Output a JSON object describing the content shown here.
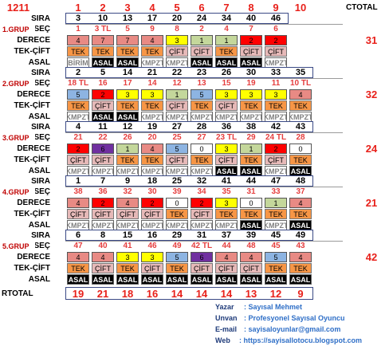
{
  "header": {
    "id": "1211",
    "columns": [
      "1",
      "2",
      "3",
      "4",
      "5",
      "6",
      "7",
      "8",
      "9",
      "10"
    ],
    "ctotal": "CTOTAL"
  },
  "row_labels": {
    "sira": "SIRA",
    "sec": "SEÇ",
    "derece": "DERECE",
    "tekcift": "TEK-ÇİFT",
    "asal": "ASAL"
  },
  "colors": {
    "red": "#ff0000",
    "pink": "#e88a84",
    "yellow": "#ffff00",
    "green": "#c4d79b",
    "blue": "#8db4e2",
    "purple": "#7030a0",
    "white": "#ffffff",
    "tek": "#f79646",
    "cift": "#e6b9b8",
    "asal": "#000000",
    "kmpzt": "#ffffff",
    "accent": "#e8201a",
    "labelblue": "#1f3b7a",
    "linkblue": "#2f6fc7"
  },
  "groups": [
    {
      "label": "1.GRUP",
      "sira": [
        "3",
        "10",
        "13",
        "17",
        "20",
        "24",
        "34",
        "40",
        "46"
      ],
      "sec": [
        "1",
        "3 TL",
        "5",
        "9",
        "8",
        "2",
        "4",
        "7",
        "6"
      ],
      "derece": [
        {
          "v": "4",
          "c": "pink"
        },
        {
          "v": "7",
          "c": "pink"
        },
        {
          "v": "7",
          "c": "pink"
        },
        {
          "v": "4",
          "c": "pink"
        },
        {
          "v": "3",
          "c": "yellow"
        },
        {
          "v": "1",
          "c": "green"
        },
        {
          "v": "1",
          "c": "green"
        },
        {
          "v": "2",
          "c": "red"
        },
        {
          "v": "2",
          "c": "red"
        }
      ],
      "tekcift": [
        "TEK",
        "TEK",
        "TEK",
        "TEK",
        "ÇİFT",
        "ÇİFT",
        "TEK",
        "ÇİFT",
        "ÇİFT"
      ],
      "asal": [
        "BİRİM",
        "ASAL",
        "ASAL",
        "KMPZT",
        "KMPZT",
        "ASAL",
        "ASAL",
        "ASAL",
        "KMPZT"
      ],
      "total": "31"
    },
    {
      "label": "2.GRUP",
      "sira": [
        "2",
        "5",
        "14",
        "21",
        "22",
        "23",
        "26",
        "30",
        "33",
        "35"
      ],
      "sec": [
        "18 TL",
        "16",
        "17",
        "14",
        "12",
        "13",
        "15",
        "19",
        "11",
        "10 TL"
      ],
      "derece": [
        {
          "v": "5",
          "c": "blue"
        },
        {
          "v": "2",
          "c": "red"
        },
        {
          "v": "3",
          "c": "yellow"
        },
        {
          "v": "3",
          "c": "yellow"
        },
        {
          "v": "1",
          "c": "green"
        },
        {
          "v": "5",
          "c": "blue"
        },
        {
          "v": "3",
          "c": "yellow"
        },
        {
          "v": "3",
          "c": "yellow"
        },
        {
          "v": "3",
          "c": "yellow"
        },
        {
          "v": "4",
          "c": "pink"
        }
      ],
      "tekcift": [
        "TEK",
        "ÇİFT",
        "TEK",
        "TEK",
        "ÇİFT",
        "TEK",
        "ÇİFT",
        "TEK",
        "TEK",
        "TEK"
      ],
      "asal": [
        "KMPZT",
        "ASAL",
        "ASAL",
        "KMPZT",
        "KMPZT",
        "KMPZT",
        "KMPZT",
        "KMPZT",
        "KMPZT",
        "KMPZT"
      ],
      "total": "32"
    },
    {
      "label": "3.GRUP",
      "sira": [
        "4",
        "11",
        "12",
        "19",
        "27",
        "28",
        "36",
        "38",
        "42",
        "43"
      ],
      "sec": [
        "21",
        "22",
        "26",
        "20",
        "25",
        "27",
        "23 TL",
        "29",
        "24 TL",
        "28"
      ],
      "derece": [
        {
          "v": "2",
          "c": "red"
        },
        {
          "v": "6",
          "c": "purple"
        },
        {
          "v": "1",
          "c": "green"
        },
        {
          "v": "4",
          "c": "pink"
        },
        {
          "v": "5",
          "c": "blue"
        },
        {
          "v": "0",
          "c": "white"
        },
        {
          "v": "3",
          "c": "yellow"
        },
        {
          "v": "1",
          "c": "green"
        },
        {
          "v": "2",
          "c": "red"
        },
        {
          "v": "0",
          "c": "white"
        }
      ],
      "tekcift": [
        "ÇİFT",
        "ÇİFT",
        "TEK",
        "TEK",
        "ÇİFT",
        "TEK",
        "ÇİFT",
        "TEK",
        "ÇİFT",
        "TEK"
      ],
      "asal": [
        "KMPZT",
        "KMPZT",
        "KMPZT",
        "KMPZT",
        "KMPZT",
        "KMPZT",
        "ASAL",
        "ASAL",
        "KMPZT",
        "ASAL"
      ],
      "total": "24"
    },
    {
      "label": "4.GRUP",
      "sira": [
        "1",
        "7",
        "9",
        "18",
        "25",
        "32",
        "41",
        "44",
        "47",
        "48"
      ],
      "sec": [
        "38",
        "36",
        "32",
        "30",
        "39",
        "34",
        "35",
        "31",
        "33",
        "37"
      ],
      "derece": [
        {
          "v": "4",
          "c": "pink"
        },
        {
          "v": "2",
          "c": "red"
        },
        {
          "v": "4",
          "c": "pink"
        },
        {
          "v": "2",
          "c": "red"
        },
        {
          "v": "0",
          "c": "white"
        },
        {
          "v": "2",
          "c": "red"
        },
        {
          "v": "3",
          "c": "yellow"
        },
        {
          "v": "0",
          "c": "white"
        },
        {
          "v": "1",
          "c": "green"
        },
        {
          "v": "4",
          "c": "pink"
        }
      ],
      "tekcift": [
        "ÇİFT",
        "ÇİFT",
        "ÇİFT",
        "ÇİFT",
        "TEK",
        "ÇİFT",
        "TEK",
        "TEK",
        "TEK",
        "TEK"
      ],
      "asal": [
        "KMPZT",
        "KMPZT",
        "KMPZT",
        "KMPZT",
        "KMPZT",
        "KMPZT",
        "KMPZT",
        "ASAL",
        "KMPZT",
        "ASAL"
      ],
      "total": "21"
    },
    {
      "label": "5.GRUP",
      "sira": [
        "6",
        "8",
        "15",
        "16",
        "29",
        "31",
        "37",
        "39",
        "45",
        "49"
      ],
      "sec": [
        "47",
        "40",
        "41",
        "46",
        "49",
        "42 TL",
        "44",
        "48",
        "45",
        "43"
      ],
      "derece": [
        {
          "v": "4",
          "c": "pink"
        },
        {
          "v": "4",
          "c": "pink"
        },
        {
          "v": "3",
          "c": "yellow"
        },
        {
          "v": "3",
          "c": "yellow"
        },
        {
          "v": "5",
          "c": "blue"
        },
        {
          "v": "6",
          "c": "purple"
        },
        {
          "v": "4",
          "c": "pink"
        },
        {
          "v": "4",
          "c": "pink"
        },
        {
          "v": "5",
          "c": "blue"
        },
        {
          "v": "4",
          "c": "pink"
        }
      ],
      "tekcift": [
        "TEK",
        "ÇİFT",
        "TEK",
        "ÇİFT",
        "TEK",
        "ÇİFT",
        "ÇİFT",
        "ÇİFT",
        "TEK",
        "TEK"
      ],
      "asal": [
        "ASAL",
        "ASAL",
        "ASAL",
        "ASAL",
        "ASAL",
        "ASAL",
        "ASAL",
        "ASAL",
        "ASAL",
        "ASAL"
      ],
      "total": "42"
    }
  ],
  "rtotal": {
    "label": "RTOTAL",
    "values": [
      "19",
      "21",
      "18",
      "16",
      "14",
      "14",
      "14",
      "13",
      "12",
      "9"
    ]
  },
  "footer": {
    "yazar_label": "Yazar",
    "yazar_value": ": Sayısal Mehmet",
    "unvan_label": "Unvan",
    "unvan_value": ": Profesyonel Sayısal Oyuncu",
    "email_label": "E-mail",
    "email_value": ": sayisaloyunlar@gmail.com",
    "web_label": "Web",
    "web_value": ": https://sayisallotocu.blogspot.com"
  }
}
